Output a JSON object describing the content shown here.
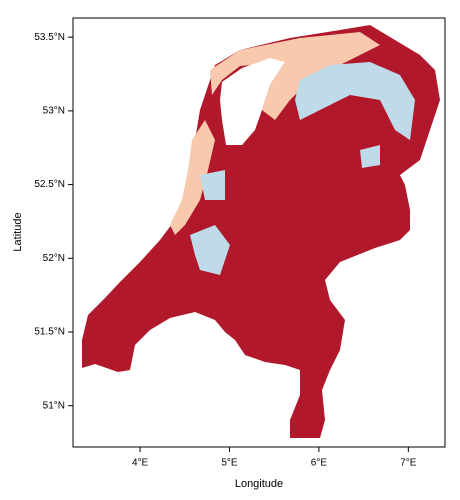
{
  "chart_data": {
    "type": "map",
    "x_label": "Longitude",
    "y_label": "Latitude",
    "xlim": [
      3.25,
      7.41
    ],
    "ylim": [
      50.72,
      53.63
    ],
    "xticks": [
      {
        "value": 4,
        "label": "4°E"
      },
      {
        "value": 5,
        "label": "5°E"
      },
      {
        "value": 6,
        "label": "6°E"
      },
      {
        "value": 7,
        "label": "7°E"
      }
    ],
    "yticks": [
      {
        "value": 51,
        "label": "51°N"
      },
      {
        "value": 51.5,
        "label": "51.5°N"
      },
      {
        "value": 52,
        "label": "52°N"
      },
      {
        "value": 52.5,
        "label": "52.5°N"
      },
      {
        "value": 53,
        "label": "53°N"
      },
      {
        "value": 53.5,
        "label": "53.5°N"
      }
    ]
  }
}
